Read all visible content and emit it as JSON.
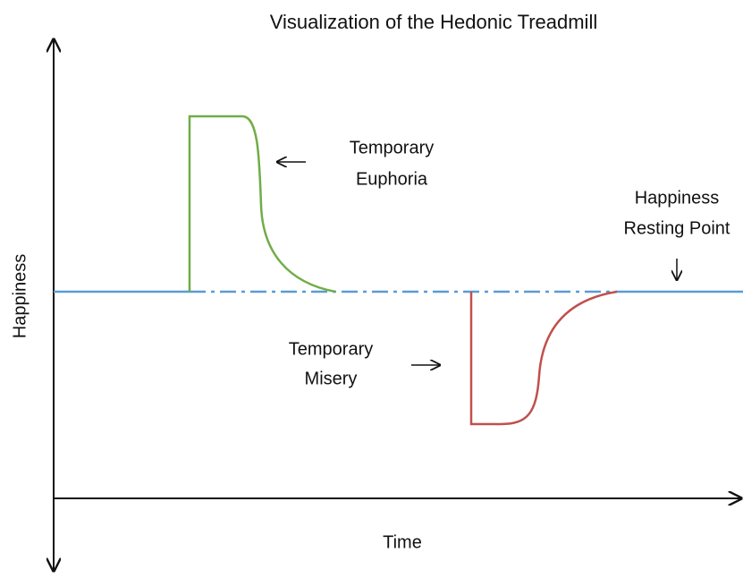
{
  "title": "Visualization of the Hedonic Treadmill",
  "y_axis_label": "Happiness",
  "x_axis_label": "Time",
  "annotations": {
    "euphoria": [
      "Temporary",
      "Euphoria"
    ],
    "misery": [
      "Temporary",
      "Misery"
    ],
    "resting_point": [
      "Happiness",
      "Resting Point"
    ]
  }
}
